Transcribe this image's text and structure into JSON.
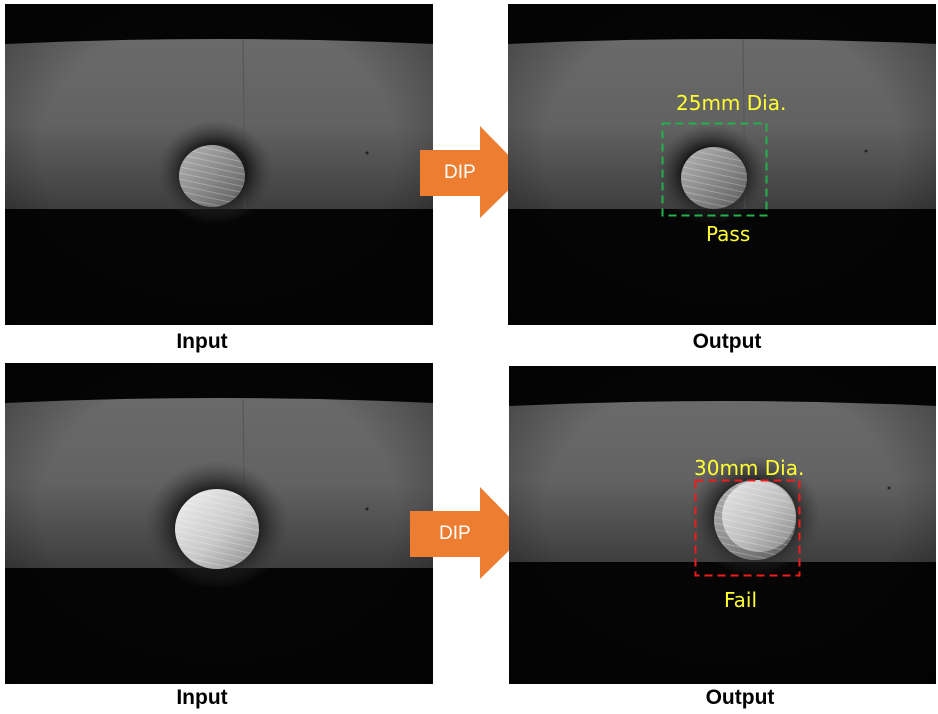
{
  "rows": [
    {
      "input_caption": "Input",
      "output_caption": "Output",
      "arrow_label": "DIP",
      "result": {
        "diameter_label": "25mm Dia.",
        "status_label": "Pass",
        "box_color": "#22b14c"
      }
    },
    {
      "input_caption": "Input",
      "output_caption": "Output",
      "arrow_label": "DIP",
      "result": {
        "diameter_label": "30mm Dia.",
        "status_label": "Fail",
        "box_color": "#ee1c1c"
      }
    }
  ],
  "colors": {
    "arrow": "#ed7d31",
    "overlay_text": "#ffff33"
  }
}
